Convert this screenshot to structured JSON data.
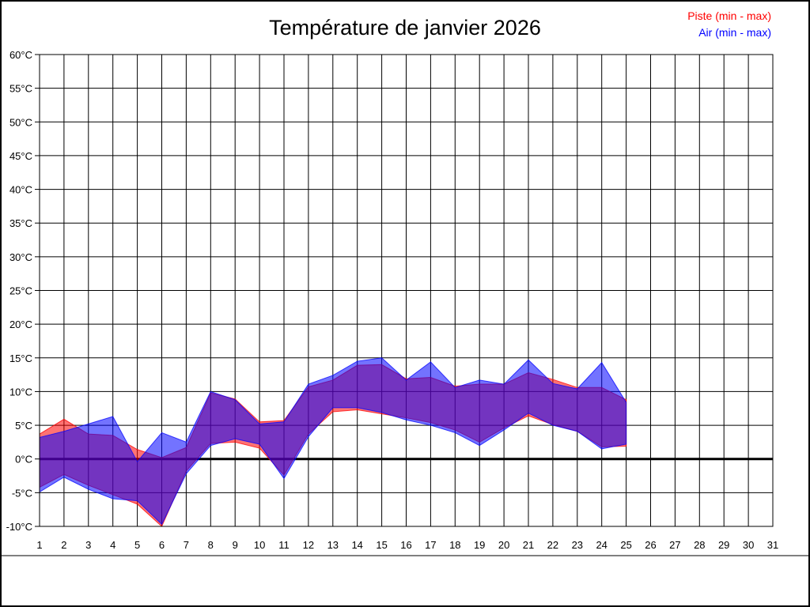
{
  "title": "Température de janvier 2026",
  "legend": {
    "piste_label": "Piste (min - max)",
    "piste_color": "#ff0000",
    "air_label": "Air (min - max)",
    "air_color": "#0000ff"
  },
  "chart_data": {
    "type": "area",
    "title": "Température de janvier 2026",
    "grid": true,
    "legend_position": "top-right",
    "x_axis": {
      "ticks_range": [
        1,
        31
      ]
    },
    "y_axis": {
      "unit": "°C",
      "lim": [
        -10,
        60
      ],
      "tick_step": 5,
      "zero_line_bold": true
    },
    "x": [
      1,
      2,
      3,
      4,
      5,
      6,
      7,
      8,
      9,
      10,
      11,
      12,
      13,
      14,
      15,
      16,
      17,
      18,
      19,
      20,
      21,
      22,
      23,
      24,
      25
    ],
    "series": [
      {
        "name": "Piste (min - max)",
        "color": "#ff0000",
        "max": [
          3.7,
          5.9,
          3.7,
          3.5,
          1.4,
          0.2,
          1.7,
          9.8,
          8.9,
          5.5,
          5.7,
          10.7,
          11.7,
          13.9,
          14.0,
          11.9,
          12.1,
          10.8,
          11.1,
          11.1,
          12.8,
          11.8,
          10.6,
          10.6,
          8.8
        ],
        "min": [
          -4.2,
          -2.3,
          -3.9,
          -5.3,
          -6.7,
          -10.0,
          -1.8,
          2.3,
          2.5,
          1.6,
          -2.4,
          3.7,
          7.0,
          7.3,
          6.7,
          6.1,
          5.4,
          4.3,
          2.5,
          4.6,
          6.4,
          5.1,
          4.1,
          1.8,
          1.9
        ]
      },
      {
        "name": "Air (min - max)",
        "color": "#0000ff",
        "max": [
          3.2,
          4.1,
          5.2,
          6.3,
          -0.4,
          3.9,
          2.5,
          10.0,
          8.8,
          5.2,
          5.5,
          11.1,
          12.4,
          14.5,
          15.0,
          11.7,
          14.4,
          10.6,
          11.7,
          11.1,
          14.7,
          11.2,
          10.4,
          14.3,
          8.4
        ],
        "min": [
          -4.9,
          -2.7,
          -4.5,
          -5.9,
          -6.2,
          -9.7,
          -2.2,
          2.0,
          3.0,
          2.2,
          -2.9,
          3.3,
          7.6,
          7.6,
          6.9,
          5.8,
          5.0,
          3.9,
          2.0,
          4.3,
          6.8,
          5.0,
          4.1,
          1.5,
          2.2
        ]
      }
    ]
  }
}
